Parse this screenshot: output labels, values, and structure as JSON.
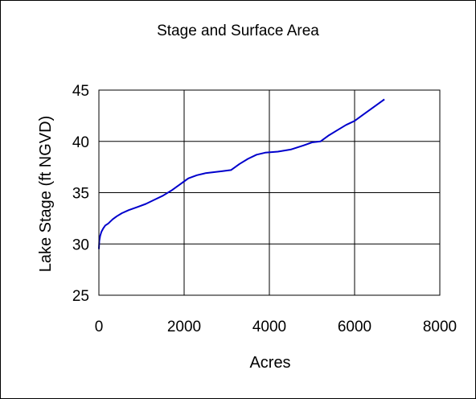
{
  "chart_data": {
    "type": "line",
    "title": "Stage and Surface Area",
    "xlabel": "Acres",
    "ylabel": "Lake Stage (ft NGVD)",
    "xlim": [
      0,
      8000
    ],
    "ylim": [
      25,
      45
    ],
    "xticks": [
      0,
      2000,
      4000,
      6000,
      8000
    ],
    "yticks": [
      25,
      30,
      35,
      40,
      45
    ],
    "xtick_labels": [
      "0",
      "2000",
      "4000",
      "6000",
      "8000"
    ],
    "ytick_labels": [
      "25",
      "30",
      "35",
      "40",
      "45"
    ],
    "grid": true,
    "line_color": "#0000cc",
    "series": [
      {
        "x": [
          0,
          10,
          30,
          60,
          100,
          150,
          220,
          320,
          420,
          540,
          700,
          900,
          1100,
          1300,
          1500,
          1700,
          1900,
          2000,
          2100,
          2300,
          2500,
          2700,
          2900,
          3100,
          3300,
          3500,
          3700,
          3900,
          4200,
          4500,
          4800,
          5000,
          5200,
          5400,
          5600,
          5800,
          6000,
          6200,
          6400,
          6700
        ],
        "y": [
          29.5,
          30.3,
          30.8,
          31.2,
          31.5,
          31.8,
          32.0,
          32.4,
          32.7,
          33.0,
          33.3,
          33.6,
          33.9,
          34.3,
          34.7,
          35.2,
          35.8,
          36.1,
          36.4,
          36.7,
          36.9,
          37.0,
          37.1,
          37.2,
          37.8,
          38.3,
          38.7,
          38.9,
          39.0,
          39.2,
          39.6,
          39.9,
          40.0,
          40.6,
          41.1,
          41.6,
          42.0,
          42.6,
          43.2,
          44.1
        ]
      }
    ]
  }
}
